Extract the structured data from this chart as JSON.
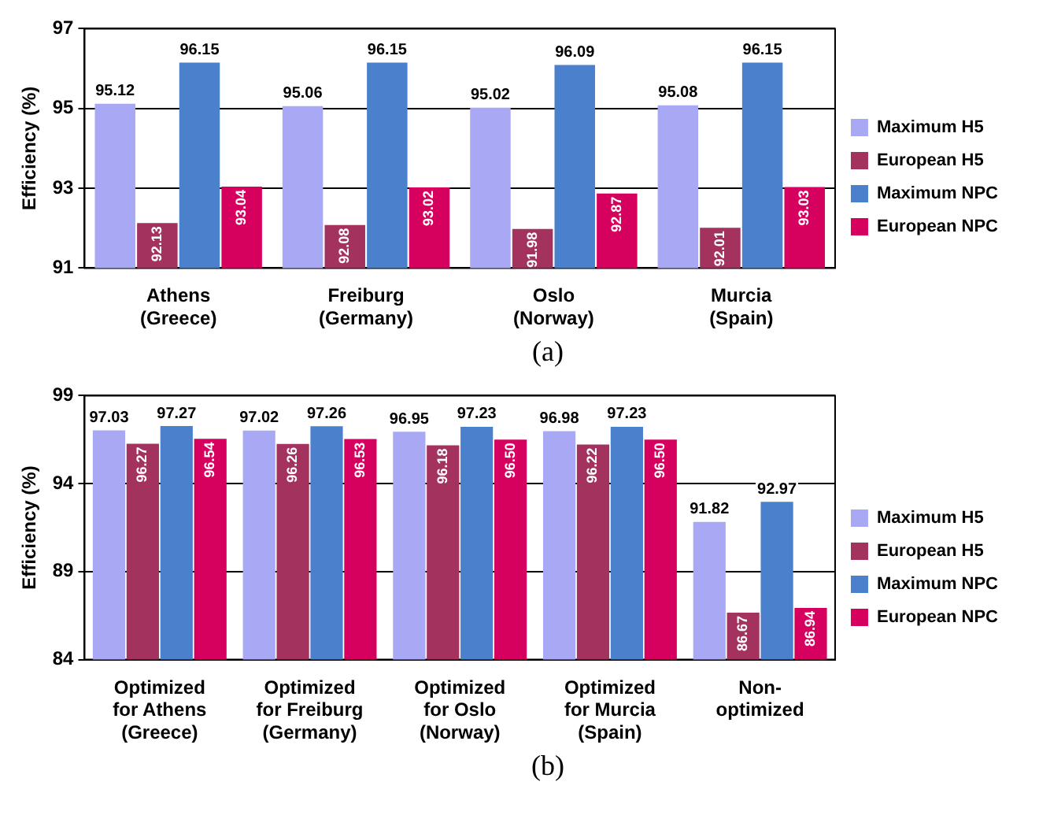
{
  "chart_data": [
    {
      "type": "bar",
      "categories": [
        "Athens\n(Greece)",
        "Freiburg\n(Germany)",
        "Oslo\n(Norway)",
        "Murcia\n(Spain)"
      ],
      "ylabel": "Efficiency (%)",
      "ylim": [
        91,
        97
      ],
      "yticks": [
        91,
        93,
        95,
        97
      ],
      "grid": "y",
      "legend": "right",
      "annotations": [
        "(a)"
      ],
      "series": [
        {
          "name": "Maximum H5",
          "color": "#a9a8f4",
          "values": [
            95.12,
            95.06,
            95.02,
            95.08
          ],
          "value_labels": [
            "95.12",
            "95.06",
            "95.02",
            "95.08"
          ]
        },
        {
          "name": "European H5",
          "color": "#a3325f",
          "values": [
            92.13,
            92.08,
            91.98,
            92.01
          ],
          "value_labels": [
            "92.13",
            "92.08",
            "91.98",
            "92.01"
          ]
        },
        {
          "name": "Maximum NPC",
          "color": "#4a80cc",
          "values": [
            96.15,
            96.15,
            96.09,
            96.15
          ],
          "value_labels": [
            "96.15",
            "96.15",
            "96.09",
            "96.15"
          ]
        },
        {
          "name": "European NPC",
          "color": "#d6005f",
          "values": [
            93.04,
            93.02,
            92.87,
            93.03
          ],
          "value_labels": [
            "93.04",
            "93.02",
            "92.87",
            "93.03"
          ]
        }
      ]
    },
    {
      "type": "bar",
      "categories": [
        "Optimized\nfor Athens\n(Greece)",
        "Optimized\nfor Freiburg\n(Germany)",
        "Optimized\nfor Oslo\n(Norway)",
        "Optimized\nfor Murcia\n(Spain)",
        "Non-\noptimized"
      ],
      "ylabel": "Efficiency (%)",
      "ylim": [
        84,
        99
      ],
      "yticks": [
        84,
        89,
        94,
        99
      ],
      "grid": "y",
      "legend": "right",
      "annotations": [
        "(b)"
      ],
      "series": [
        {
          "name": "Maximum H5",
          "color": "#a9a8f4",
          "values": [
            97.03,
            97.02,
            96.95,
            96.98,
            91.82
          ],
          "value_labels": [
            "97.03",
            "97.02",
            "96.95",
            "96.98",
            "91.82"
          ]
        },
        {
          "name": "European H5",
          "color": "#a3325f",
          "values": [
            96.27,
            96.26,
            96.18,
            96.22,
            86.67
          ],
          "value_labels": [
            "96.27",
            "96.26",
            "96.18",
            "96.22",
            "86.67"
          ]
        },
        {
          "name": "Maximum NPC",
          "color": "#4a80cc",
          "values": [
            97.27,
            97.26,
            97.23,
            97.23,
            92.97
          ],
          "value_labels": [
            "97.27",
            "97.26",
            "97.23",
            "97.23",
            "92.97"
          ]
        },
        {
          "name": "European NPC",
          "color": "#d6005f",
          "values": [
            96.54,
            96.53,
            96.5,
            96.5,
            86.94
          ],
          "value_labels": [
            "96.54",
            "96.53",
            "96.50",
            "96.50",
            "86.94"
          ]
        }
      ]
    }
  ]
}
